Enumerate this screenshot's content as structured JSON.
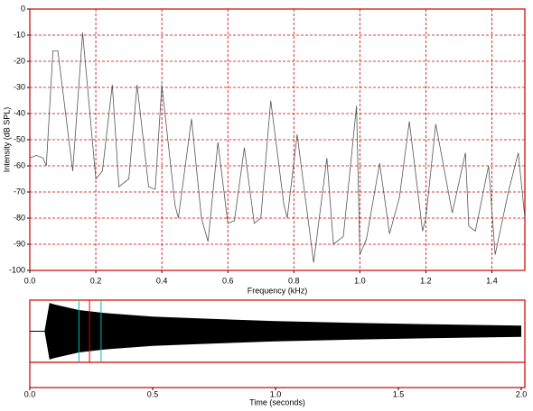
{
  "chart_data": [
    {
      "type": "line",
      "x_label": "Frequency (kHz)",
      "y_label": "Intensity (dB SPL)",
      "color": "#555555",
      "grid_color": "#cc0000",
      "grid": true,
      "xlim": [
        0,
        1.5
      ],
      "ylim": [
        -100,
        0
      ],
      "xticks": [
        {
          "value": 0,
          "label": "0.0"
        },
        0.2,
        0.4,
        0.6,
        0.8,
        {
          "value": 1,
          "label": "1.0"
        },
        1.2,
        1.4
      ],
      "yticks": [
        0,
        -10,
        -20,
        -30,
        -40,
        -50,
        -60,
        -70,
        -80,
        -90,
        -100
      ],
      "x": [
        0,
        0.02,
        0.04,
        0.05,
        0.07,
        0.085,
        0.13,
        0.16,
        0.2,
        0.22,
        0.25,
        0.27,
        0.3,
        0.325,
        0.36,
        0.38,
        0.4,
        0.44,
        0.45,
        0.49,
        0.52,
        0.54,
        0.57,
        0.6,
        0.62,
        0.65,
        0.68,
        0.7,
        0.73,
        0.77,
        0.78,
        0.81,
        0.86,
        0.9,
        0.92,
        0.95,
        0.99,
        1.0,
        1.02,
        1.06,
        1.09,
        1.12,
        1.15,
        1.19,
        1.2,
        1.23,
        1.28,
        1.32,
        1.33,
        1.35,
        1.39,
        1.41,
        1.45,
        1.48,
        1.5
      ],
      "values": [
        -57,
        -56,
        -57,
        -60,
        -16,
        -16,
        -62,
        -9,
        -65,
        -62,
        -29,
        -68,
        -65,
        -29,
        -68,
        -69,
        -29,
        -75,
        -80,
        -42,
        -80,
        -89,
        -51,
        -82,
        -81,
        -53,
        -82,
        -80,
        -35,
        -75,
        -80,
        -48,
        -97,
        -57,
        -90,
        -87,
        -37,
        -94,
        -88,
        -59,
        -86,
        -72,
        -43,
        -85,
        -80,
        -44,
        -78,
        -55,
        -83,
        -85,
        -60,
        -94,
        -70,
        -55,
        -80
      ]
    },
    {
      "type": "area",
      "x_label": "Time (seconds)",
      "color": "#000000",
      "frame_color": "#cc0000",
      "xlim": [
        0,
        2
      ],
      "ylim": [
        -1.1,
        1.1
      ],
      "xticks": [
        {
          "value": 0,
          "label": "0.0"
        },
        0.5,
        {
          "value": 1,
          "label": "1.0"
        },
        1.5,
        {
          "value": 2,
          "label": "2.0"
        }
      ],
      "x": [
        0,
        0.06,
        0.07,
        0.08,
        0.1,
        0.15,
        0.2,
        0.3,
        0.4,
        0.5,
        0.7,
        1.0,
        1.3,
        1.6,
        2.0
      ],
      "values": [
        0,
        0,
        0.5,
        1,
        0.95,
        0.85,
        0.75,
        0.65,
        0.58,
        0.52,
        0.45,
        0.36,
        0.3,
        0.25,
        0.2
      ],
      "cursors": [
        {
          "value": 0.2,
          "color": "#00b8c8"
        },
        {
          "value": 0.243,
          "color": "#dd0000"
        },
        {
          "value": 0.29,
          "color": "#00b8c8"
        }
      ]
    }
  ]
}
